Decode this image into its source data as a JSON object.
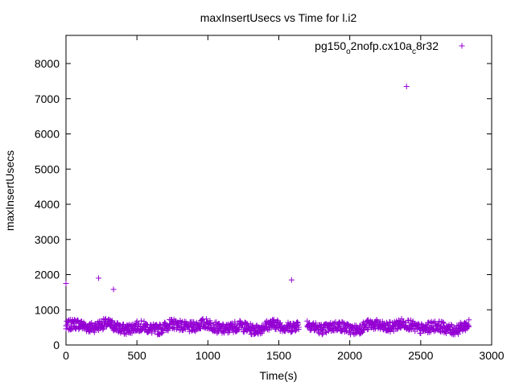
{
  "chart_data": {
    "type": "scatter",
    "title": "maxInsertUsecs vs Time for l.i2",
    "xlabel": "Time(s)",
    "ylabel": "maxInsertUsecs",
    "xlim": [
      0,
      3000
    ],
    "ylim": [
      0,
      8800
    ],
    "xticks": [
      0,
      500,
      1000,
      1500,
      2000,
      2500,
      3000
    ],
    "yticks": [
      0,
      1000,
      2000,
      3000,
      4000,
      5000,
      6000,
      7000,
      8000
    ],
    "grid": false,
    "legend_position": "top-right",
    "marker": "plus",
    "color": "#9400d3",
    "series": [
      {
        "name_parts": [
          "pg150",
          "o",
          "2nofp.cx10a",
          "c",
          "8r32"
        ],
        "outliers": [
          {
            "x": 0,
            "y": 1750
          },
          {
            "x": 230,
            "y": 1900
          },
          {
            "x": 335,
            "y": 1580
          },
          {
            "x": 1590,
            "y": 1850
          },
          {
            "x": 2400,
            "y": 7350
          }
        ],
        "dense_band": {
          "x_range": [
            0,
            2840
          ],
          "y_center": 520,
          "y_spread": 150,
          "gap_x_range": [
            1640,
            1700
          ]
        }
      }
    ]
  }
}
